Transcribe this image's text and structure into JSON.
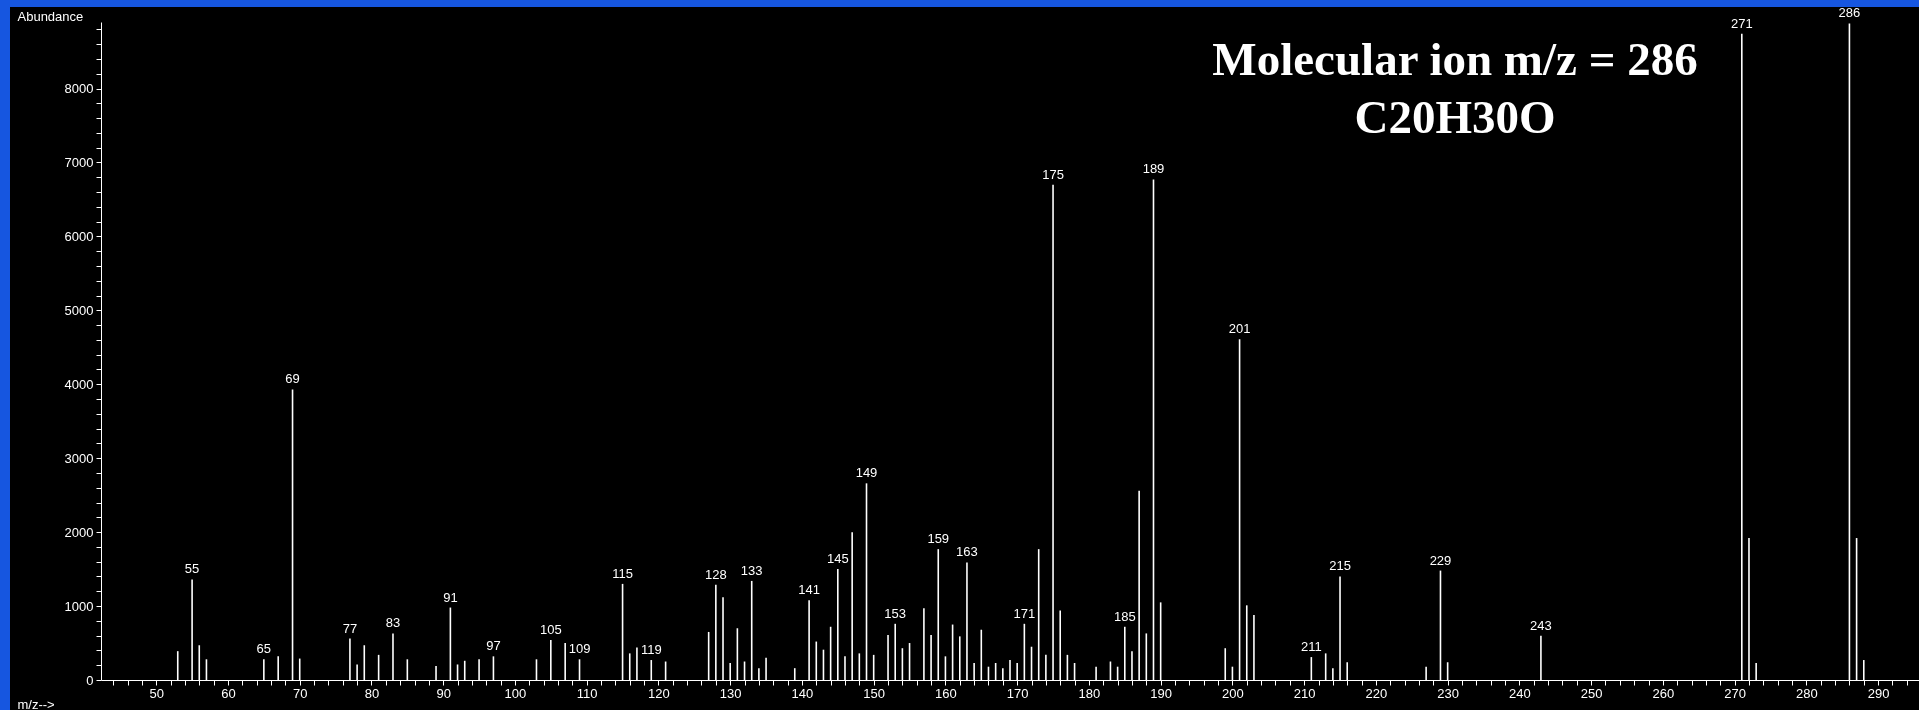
{
  "chart_data": {
    "type": "bar",
    "xlabel": "m/z-->",
    "ylabel": "Abundance",
    "annotations": [
      "Molecular ion m/z = 286",
      "C20H30O",
      {
        "text": "55",
        "x": 55,
        "y": 1360
      },
      {
        "text": "65",
        "x": 65,
        "y": 280
      },
      {
        "text": "69",
        "x": 69,
        "y": 3930
      },
      {
        "text": "77",
        "x": 77,
        "y": 560
      },
      {
        "text": "83",
        "x": 83,
        "y": 630
      },
      {
        "text": "91",
        "x": 91,
        "y": 980
      },
      {
        "text": "97",
        "x": 97,
        "y": 320
      },
      {
        "text": "105",
        "x": 105,
        "y": 540
      },
      {
        "text": "109",
        "x": 109,
        "y": 280
      },
      {
        "text": "115",
        "x": 115,
        "y": 1300
      },
      {
        "text": "119",
        "x": 119,
        "y": 270
      },
      {
        "text": "128",
        "x": 128,
        "y": 1290
      },
      {
        "text": "133",
        "x": 133,
        "y": 1340
      },
      {
        "text": "141",
        "x": 141,
        "y": 1080
      },
      {
        "text": "145",
        "x": 145,
        "y": 1500
      },
      {
        "text": "149",
        "x": 149,
        "y": 2660
      },
      {
        "text": "153",
        "x": 153,
        "y": 760
      },
      {
        "text": "159",
        "x": 159,
        "y": 1770
      },
      {
        "text": "163",
        "x": 163,
        "y": 1590
      },
      {
        "text": "171",
        "x": 171,
        "y": 760
      },
      {
        "text": "175",
        "x": 175,
        "y": 6700
      },
      {
        "text": "185",
        "x": 185,
        "y": 720
      },
      {
        "text": "189",
        "x": 189,
        "y": 6770
      },
      {
        "text": "201",
        "x": 201,
        "y": 4610
      },
      {
        "text": "211",
        "x": 211,
        "y": 310
      },
      {
        "text": "215",
        "x": 215,
        "y": 1400
      },
      {
        "text": "229",
        "x": 229,
        "y": 1480
      },
      {
        "text": "243",
        "x": 243,
        "y": 600
      },
      {
        "text": "271",
        "x": 271,
        "y": 8740
      },
      {
        "text": "286",
        "x": 286,
        "y": 8880
      }
    ],
    "color": "#ffffff",
    "x": [
      53,
      55,
      56,
      57,
      65,
      67,
      69,
      70,
      77,
      78,
      79,
      81,
      83,
      85,
      89,
      91,
      92,
      93,
      95,
      97,
      103,
      105,
      107,
      109,
      115,
      116,
      117,
      119,
      121,
      127,
      128,
      129,
      130,
      131,
      132,
      133,
      134,
      135,
      139,
      141,
      142,
      143,
      144,
      145,
      146,
      147,
      148,
      149,
      150,
      152,
      153,
      154,
      155,
      157,
      158,
      159,
      160,
      161,
      162,
      163,
      164,
      165,
      166,
      167,
      168,
      169,
      170,
      171,
      172,
      173,
      174,
      175,
      176,
      177,
      178,
      181,
      183,
      184,
      185,
      186,
      187,
      188,
      189,
      190,
      199,
      200,
      201,
      202,
      203,
      211,
      213,
      214,
      215,
      216,
      227,
      229,
      230,
      243,
      271,
      272,
      273,
      286,
      287,
      288
    ],
    "values": [
      390,
      1360,
      470,
      280,
      280,
      320,
      3930,
      290,
      560,
      210,
      470,
      340,
      630,
      280,
      190,
      980,
      210,
      260,
      280,
      320,
      280,
      540,
      500,
      280,
      1300,
      360,
      440,
      270,
      250,
      650,
      1290,
      1120,
      230,
      700,
      250,
      1340,
      160,
      300,
      160,
      1080,
      520,
      410,
      720,
      1500,
      320,
      2000,
      360,
      2660,
      340,
      610,
      760,
      430,
      500,
      970,
      610,
      1770,
      320,
      750,
      590,
      1590,
      230,
      680,
      180,
      230,
      160,
      270,
      230,
      760,
      450,
      1770,
      340,
      6700,
      940,
      340,
      230,
      180,
      250,
      180,
      720,
      390,
      2560,
      630,
      6770,
      1050,
      430,
      180,
      4610,
      1010,
      880,
      310,
      360,
      160,
      1400,
      240,
      180,
      1480,
      240,
      600,
      8740,
      1920,
      230,
      8880,
      1920,
      270
    ],
    "xlim": [
      43,
      295
    ],
    "xticks": [
      {
        "value": 44,
        "label": null
      },
      {
        "value": 46,
        "label": null
      },
      {
        "value": 48,
        "label": null
      },
      50,
      {
        "value": 52,
        "label": null
      },
      {
        "value": 54,
        "label": null
      },
      {
        "value": 56,
        "label": null
      },
      {
        "value": 58,
        "label": null
      },
      60,
      {
        "value": 62,
        "label": null
      },
      {
        "value": 64,
        "label": null
      },
      {
        "value": 66,
        "label": null
      },
      {
        "value": 68,
        "label": null
      },
      70,
      {
        "value": 72,
        "label": null
      },
      {
        "value": 74,
        "label": null
      },
      {
        "value": 76,
        "label": null
      },
      {
        "value": 78,
        "label": null
      },
      80,
      {
        "value": 82,
        "label": null
      },
      {
        "value": 84,
        "label": null
      },
      {
        "value": 86,
        "label": null
      },
      {
        "value": 88,
        "label": null
      },
      90,
      {
        "value": 92,
        "label": null
      },
      {
        "value": 94,
        "label": null
      },
      {
        "value": 96,
        "label": null
      },
      {
        "value": 98,
        "label": null
      },
      100,
      {
        "value": 102,
        "label": null
      },
      {
        "value": 104,
        "label": null
      },
      {
        "value": 106,
        "label": null
      },
      {
        "value": 108,
        "label": null
      },
      110,
      {
        "value": 112,
        "label": null
      },
      {
        "value": 114,
        "label": null
      },
      {
        "value": 116,
        "label": null
      },
      {
        "value": 118,
        "label": null
      },
      120,
      {
        "value": 122,
        "label": null
      },
      {
        "value": 124,
        "label": null
      },
      {
        "value": 126,
        "label": null
      },
      {
        "value": 128,
        "label": null
      },
      130,
      {
        "value": 132,
        "label": null
      },
      {
        "value": 134,
        "label": null
      },
      {
        "value": 136,
        "label": null
      },
      {
        "value": 138,
        "label": null
      },
      140,
      {
        "value": 142,
        "label": null
      },
      {
        "value": 144,
        "label": null
      },
      {
        "value": 146,
        "label": null
      },
      {
        "value": 148,
        "label": null
      },
      150,
      {
        "value": 152,
        "label": null
      },
      {
        "value": 154,
        "label": null
      },
      {
        "value": 156,
        "label": null
      },
      {
        "value": 158,
        "label": null
      },
      160,
      {
        "value": 162,
        "label": null
      },
      {
        "value": 164,
        "label": null
      },
      {
        "value": 166,
        "label": null
      },
      {
        "value": 168,
        "label": null
      },
      170,
      {
        "value": 172,
        "label": null
      },
      {
        "value": 174,
        "label": null
      },
      {
        "value": 176,
        "label": null
      },
      {
        "value": 178,
        "label": null
      },
      180,
      {
        "value": 182,
        "label": null
      },
      {
        "value": 184,
        "label": null
      },
      {
        "value": 186,
        "label": null
      },
      {
        "value": 188,
        "label": null
      },
      190,
      {
        "value": 192,
        "label": null
      },
      {
        "value": 194,
        "label": null
      },
      {
        "value": 196,
        "label": null
      },
      {
        "value": 198,
        "label": null
      },
      200,
      {
        "value": 202,
        "label": null
      },
      {
        "value": 204,
        "label": null
      },
      {
        "value": 206,
        "label": null
      },
      {
        "value": 208,
        "label": null
      },
      210,
      {
        "value": 212,
        "label": null
      },
      {
        "value": 214,
        "label": null
      },
      {
        "value": 216,
        "label": null
      },
      {
        "value": 218,
        "label": null
      },
      220,
      {
        "value": 222,
        "label": null
      },
      {
        "value": 224,
        "label": null
      },
      {
        "value": 226,
        "label": null
      },
      {
        "value": 228,
        "label": null
      },
      230,
      {
        "value": 232,
        "label": null
      },
      {
        "value": 234,
        "label": null
      },
      {
        "value": 236,
        "label": null
      },
      {
        "value": 238,
        "label": null
      },
      240,
      {
        "value": 242,
        "label": null
      },
      {
        "value": 244,
        "label": null
      },
      {
        "value": 246,
        "label": null
      },
      {
        "value": 248,
        "label": null
      },
      250,
      {
        "value": 252,
        "label": null
      },
      {
        "value": 254,
        "label": null
      },
      {
        "value": 256,
        "label": null
      },
      {
        "value": 258,
        "label": null
      },
      260,
      {
        "value": 262,
        "label": null
      },
      {
        "value": 264,
        "label": null
      },
      {
        "value": 266,
        "label": null
      },
      {
        "value": 268,
        "label": null
      },
      270,
      {
        "value": 272,
        "label": null
      },
      {
        "value": 274,
        "label": null
      },
      {
        "value": 276,
        "label": null
      },
      {
        "value": 278,
        "label": null
      },
      280,
      {
        "value": 282,
        "label": null
      },
      {
        "value": 284,
        "label": null
      },
      {
        "value": 286,
        "label": null
      },
      {
        "value": 288,
        "label": null
      },
      290,
      {
        "value": 292,
        "label": null
      },
      {
        "value": 294,
        "label": null
      }
    ],
    "ylim": [
      0,
      8900
    ],
    "yticks": [
      0,
      {
        "value": 200,
        "label": null
      },
      {
        "value": 400,
        "label": null
      },
      {
        "value": 600,
        "label": null
      },
      {
        "value": 800,
        "label": null
      },
      1000,
      {
        "value": 1200,
        "label": null
      },
      {
        "value": 1400,
        "label": null
      },
      {
        "value": 1600,
        "label": null
      },
      {
        "value": 1800,
        "label": null
      },
      2000,
      {
        "value": 2200,
        "label": null
      },
      {
        "value": 2400,
        "label": null
      },
      {
        "value": 2600,
        "label": null
      },
      {
        "value": 2800,
        "label": null
      },
      3000,
      {
        "value": 3200,
        "label": null
      },
      {
        "value": 3400,
        "label": null
      },
      {
        "value": 3600,
        "label": null
      },
      {
        "value": 3800,
        "label": null
      },
      4000,
      {
        "value": 4200,
        "label": null
      },
      {
        "value": 4400,
        "label": null
      },
      {
        "value": 4600,
        "label": null
      },
      {
        "value": 4800,
        "label": null
      },
      5000,
      {
        "value": 5200,
        "label": null
      },
      {
        "value": 5400,
        "label": null
      },
      {
        "value": 5600,
        "label": null
      },
      {
        "value": 5800,
        "label": null
      },
      6000,
      {
        "value": 6200,
        "label": null
      },
      {
        "value": 6400,
        "label": null
      },
      {
        "value": 6600,
        "label": null
      },
      {
        "value": 6800,
        "label": null
      },
      7000,
      {
        "value": 7200,
        "label": null
      },
      {
        "value": 7400,
        "label": null
      },
      {
        "value": 7600,
        "label": null
      },
      {
        "value": 7800,
        "label": null
      },
      8000,
      {
        "value": 8200,
        "label": null
      },
      {
        "value": 8400,
        "label": null
      },
      {
        "value": 8600,
        "label": null
      },
      {
        "value": 8800,
        "label": null
      }
    ]
  }
}
